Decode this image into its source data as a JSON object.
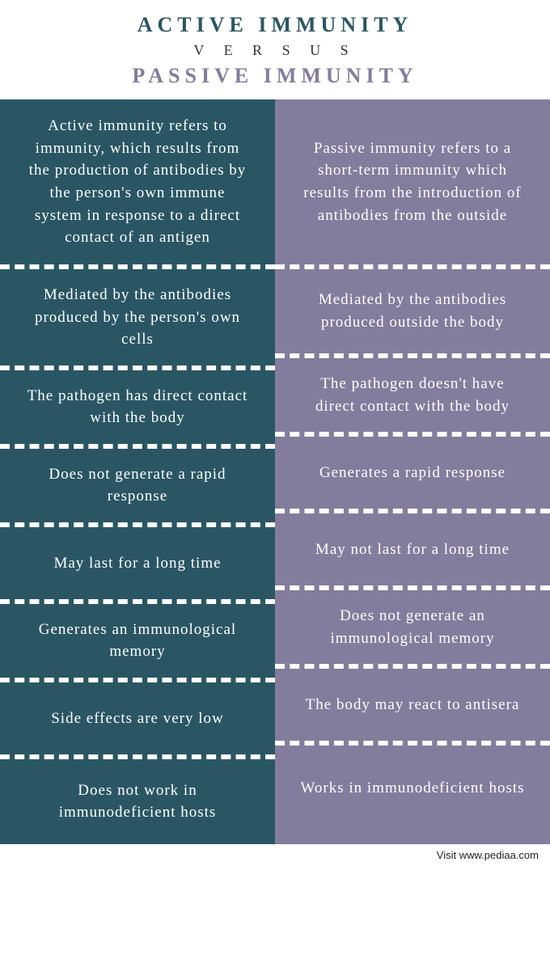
{
  "header": {
    "title_left": "ACTIVE  IMMUNITY",
    "versus": "V E R S U S",
    "title_right": "PASSIVE IMMUNITY"
  },
  "colors": {
    "left_col_bg": "#2a5664",
    "right_col_bg": "#847c9d",
    "title_left_color": "#2a5664",
    "title_right_color": "#847c9d",
    "divider": "#ffffff",
    "text": "#ffffff"
  },
  "rows": [
    {
      "left": "Active immunity refers to immunity, which results from the production of antibodies by the person's own immune system in response to a direct contact of an antigen",
      "right": "Passive immunity refers to a short-term immunity which results from the introduction of antibodies from the outside",
      "min_height": 210
    },
    {
      "left": "Mediated by the antibodies produced by the person's own cells",
      "right": "Mediated by the antibodies produced outside the body",
      "min_height": 110
    },
    {
      "left": "The pathogen has direct contact with the body",
      "right": "The pathogen doesn't have direct contact with the body",
      "min_height": 95
    },
    {
      "left": "Does not generate a rapid response",
      "right": "Generates a rapid response",
      "min_height": 95
    },
    {
      "left": "May last for a long time",
      "right": "May not last for a long time",
      "min_height": 95
    },
    {
      "left": "Generates an immunological memory",
      "right": "Does not generate an immunological memory",
      "min_height": 95
    },
    {
      "left": "Side effects are very low",
      "right": "The body may react to antisera",
      "min_height": 95
    },
    {
      "left": "Does not work in immunodeficient hosts",
      "right": "Works in immunodeficient hosts",
      "min_height": 105
    }
  ],
  "footer": {
    "text": "Visit www.pediaa.com"
  }
}
